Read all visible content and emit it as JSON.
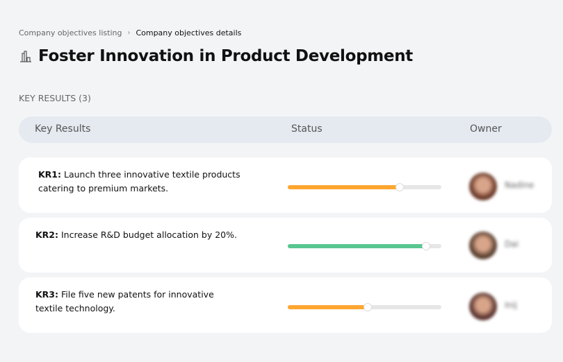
{
  "breadcrumb": {
    "parent": "Company objectives listing",
    "separator": "›",
    "current": "Company objectives details"
  },
  "page": {
    "title": "Foster Innovation in Product Development",
    "icon": "buildings-icon"
  },
  "key_results_label": "KEY RESULTS (3)",
  "table": {
    "columns": [
      "Key Results",
      "Status",
      "Owner"
    ]
  },
  "rows": [
    {
      "code": "KR1:",
      "text": " Launch three innovative textile products catering to premium markets.",
      "progress": 73,
      "color": "#ffa630",
      "owner": "Nadine",
      "avatar_color": "#6b3a2a"
    },
    {
      "code": "KR2:",
      "text": " Increase R&D budget allocation by 20%.",
      "progress": 90,
      "color": "#57c690",
      "owner": "Dai",
      "avatar_color": "#5a4030"
    },
    {
      "code": "KR3:",
      "text": " File five new patents for innovative textile technology.",
      "progress": 52,
      "color": "#ffa630",
      "owner": "Inij",
      "avatar_color": "#5b3530"
    }
  ]
}
